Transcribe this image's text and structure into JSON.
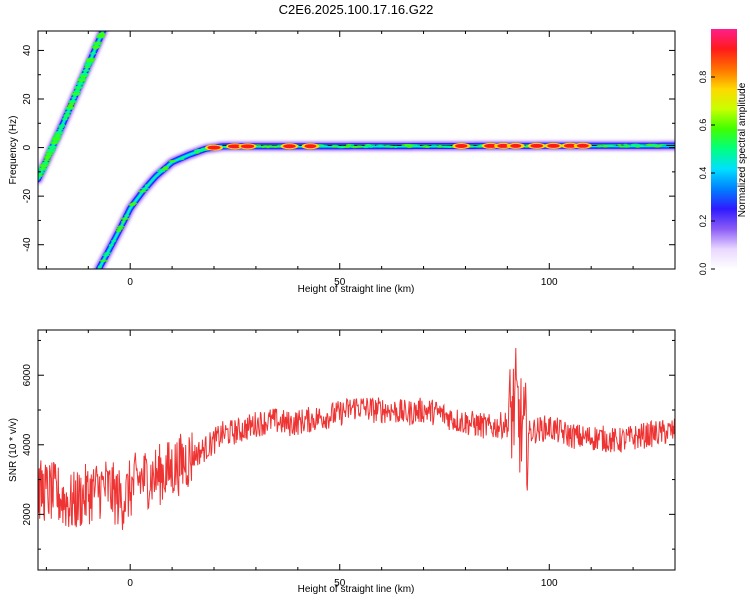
{
  "title": "C2E6.2025.100.17.16.G22",
  "chart_data": [
    {
      "type": "heatmap",
      "xlabel": "Height of straight line (km)",
      "ylabel": "Frequency (Hz)",
      "xlim": [
        -22,
        130
      ],
      "ylim": [
        -50,
        48
      ],
      "xticks": [
        0,
        50,
        100
      ],
      "yticks": [
        -40,
        -20,
        0,
        20,
        40
      ],
      "ridges": [
        {
          "x": [
            -22,
            -16,
            -10,
            -6.5
          ],
          "y": [
            -13,
            10,
            34,
            48
          ]
        },
        {
          "x": [
            -7.5,
            -5,
            -2,
            0,
            3,
            6,
            10,
            14,
            18,
            22,
            130
          ],
          "y": [
            -50,
            -42,
            -32,
            -25,
            -18,
            -12,
            -6,
            -3,
            -0.5,
            0.5,
            0.8
          ]
        }
      ],
      "colorbar": {
        "label": "Normalized spectral amplitude",
        "range": [
          0,
          1
        ],
        "ticks": [
          "0.0",
          "0.2",
          "0.4",
          "0.6",
          "0.8"
        ],
        "tick_values": [
          0,
          0.2,
          0.4,
          0.6,
          0.8
        ],
        "colors": [
          "#ffffff",
          "#e9d7ff",
          "#8b5cf6",
          "#2e1bff",
          "#0080ff",
          "#00e0ff",
          "#00ff80",
          "#40ff00",
          "#c8ff00",
          "#ffd800",
          "#ff7000",
          "#ff1a1a",
          "#ff1e8c"
        ]
      },
      "hotspots": [
        {
          "x": 20,
          "amp": 0.92
        },
        {
          "x": 25,
          "amp": 1.0
        },
        {
          "x": 28,
          "amp": 0.95
        },
        {
          "x": 38,
          "amp": 0.9
        },
        {
          "x": 43,
          "amp": 0.85
        },
        {
          "x": 79,
          "amp": 0.88
        },
        {
          "x": 86,
          "amp": 0.92
        },
        {
          "x": 89,
          "amp": 0.85
        },
        {
          "x": 92,
          "amp": 0.8
        },
        {
          "x": 97,
          "amp": 0.9
        },
        {
          "x": 101,
          "amp": 0.88
        },
        {
          "x": 105,
          "amp": 0.9
        },
        {
          "x": 108,
          "amp": 0.86
        }
      ]
    },
    {
      "type": "line",
      "xlabel": "Height of straight line (km)",
      "ylabel": "SNR (10 * v/v)",
      "xlim": [
        -22,
        130
      ],
      "ylim": [
        400,
        7300
      ],
      "xticks": [
        0,
        50,
        100
      ],
      "yticks": [
        2000,
        4000,
        6000
      ],
      "color": "#ee3333",
      "series": [
        {
          "x": [
            -22,
            -18,
            -14,
            -10,
            -6,
            -2,
            2,
            6,
            10,
            14,
            18,
            22,
            26,
            30,
            34,
            38,
            42,
            46,
            50,
            54,
            58,
            62,
            66,
            70,
            74,
            78,
            82,
            86,
            90,
            92,
            93,
            94,
            96,
            100,
            104,
            108,
            112,
            116,
            120,
            124,
            130
          ],
          "y": [
            2700,
            2600,
            2300,
            2600,
            2800,
            2400,
            3000,
            3100,
            3300,
            3600,
            3900,
            4300,
            4400,
            4600,
            4700,
            4600,
            4700,
            4800,
            4900,
            5100,
            5000,
            5000,
            4900,
            5000,
            4900,
            4700,
            4600,
            4500,
            4600,
            5200,
            4600,
            4200,
            4400,
            4500,
            4300,
            4200,
            4200,
            4100,
            4200,
            4300,
            4400
          ]
        }
      ]
    }
  ]
}
